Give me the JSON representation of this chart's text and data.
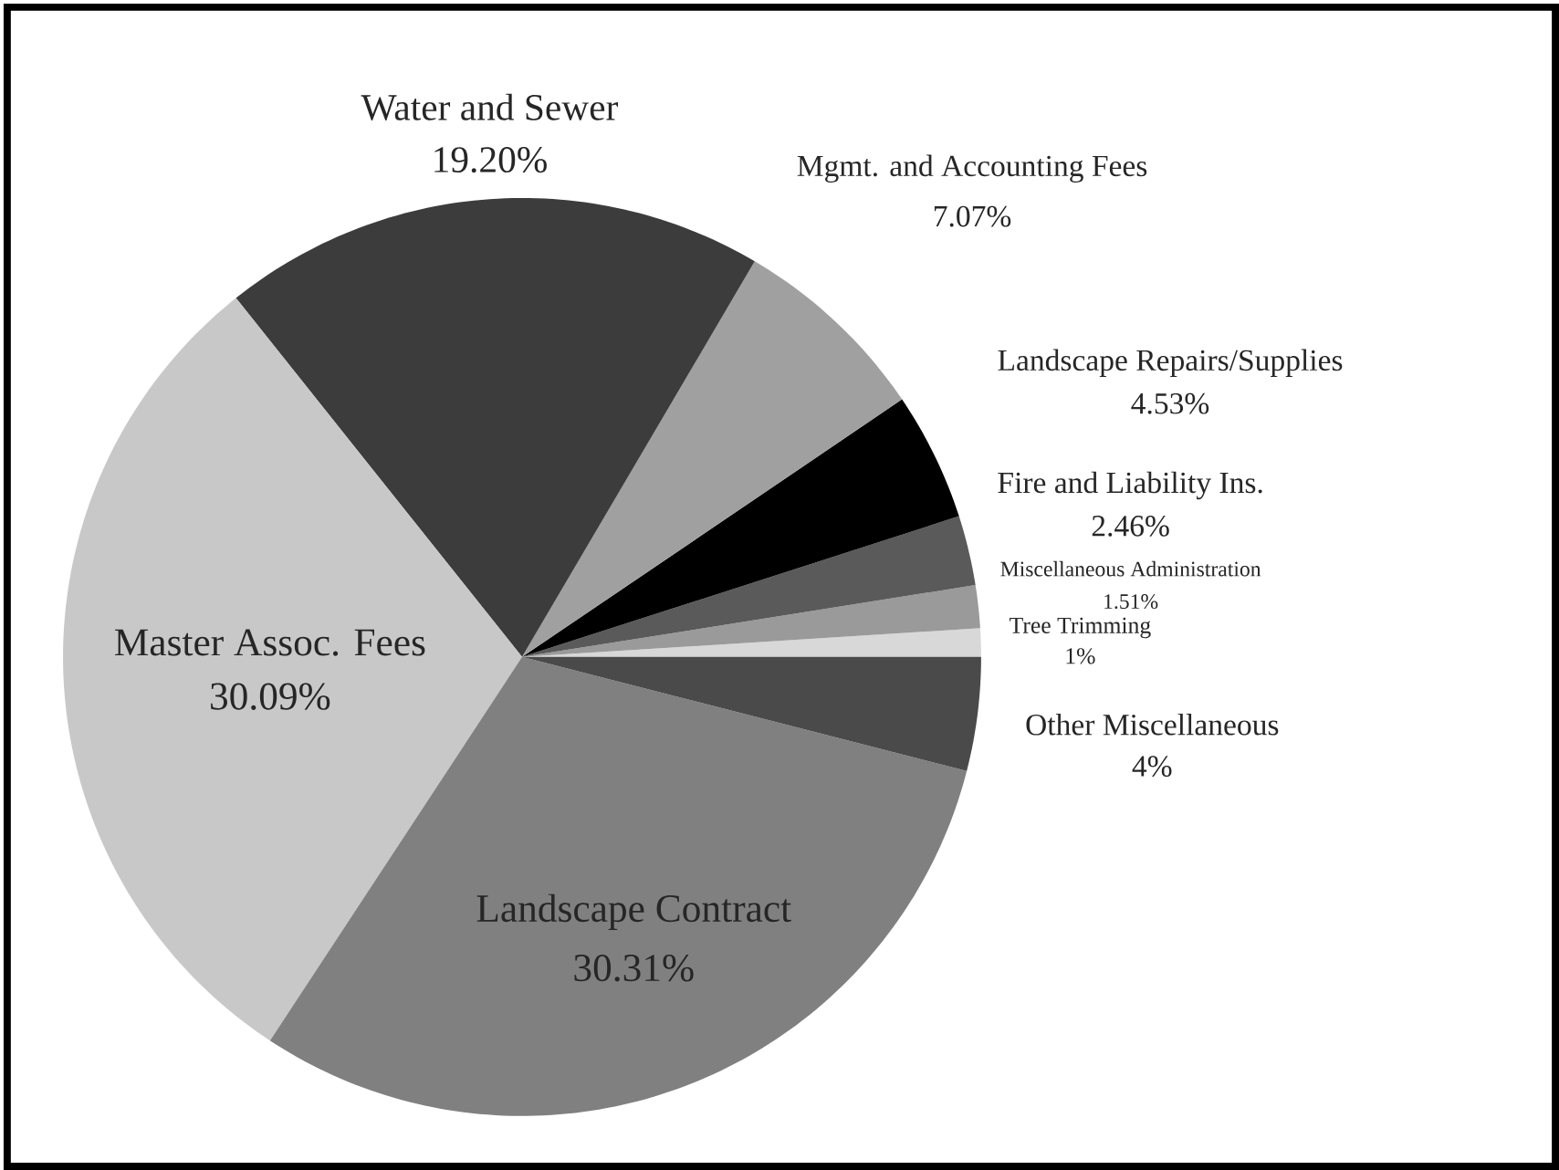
{
  "chart_data": {
    "type": "pie",
    "categories": [
      "Tree Trimming",
      "Miscellaneous Administration",
      "Fire and Liability Ins.",
      "Landscape Repairs/Supplies",
      "Mgmt. and Accounting Fees",
      "Water and Sewer",
      "Master Assoc. Fees",
      "Landscape Contract",
      "Other Miscellaneous"
    ],
    "values": [
      1,
      1.51,
      2.46,
      4.53,
      7.07,
      19.2,
      30.09,
      30.31,
      4
    ],
    "value_labels": [
      "1%",
      "1.51%",
      "2.46%",
      "4.53%",
      "7.07%",
      "19.20%",
      "30.09%",
      "30.31%",
      "4%"
    ],
    "colors": [
      "#d8d8d8",
      "#9a9a9a",
      "#5a5a5a",
      "#000000",
      "#a0a0a0",
      "#3c3c3c",
      "#c8c8c8",
      "#808080",
      "#4a4a4a"
    ]
  }
}
